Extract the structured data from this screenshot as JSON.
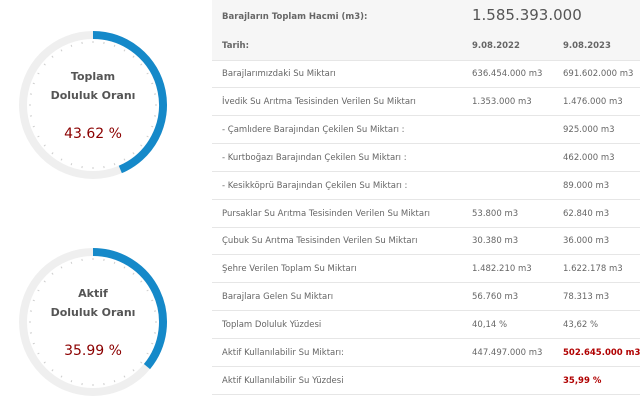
{
  "gauges": [
    {
      "title": [
        "Toplam",
        "Doluluk Oranı"
      ],
      "value": 43.62,
      "value_label": "43.62 %",
      "color": "#1589c9"
    },
    {
      "title": [
        "Aktif",
        "Doluluk Oranı"
      ],
      "value": 35.99,
      "value_label": "35.99 %",
      "color": "#1589c9"
    }
  ],
  "table": {
    "header": {
      "label": "Barajların Toplam Hacmi (m3):",
      "value": "1.585.393.000"
    },
    "columns": [
      "Tarih:",
      "9.08.2022",
      "9.08.2023"
    ],
    "highlight_color": "#b00000",
    "rows": [
      {
        "cells": [
          "Barajlarımızdaki Su Miktarı",
          "636.454.000 m3",
          "691.602.000 m3"
        ]
      },
      {
        "cells": [
          "İvedik Su Arıtma Tesisinden Verilen Su Miktarı",
          "1.353.000 m3",
          "1.476.000 m3"
        ]
      },
      {
        "cells": [
          "- Çamlıdere Barajından Çekilen Su Miktarı :",
          null,
          "925.000 m3"
        ]
      },
      {
        "cells": [
          "- Kurtboğazı Barajından Çekilen Su Miktarı :",
          null,
          "462.000 m3"
        ]
      },
      {
        "cells": [
          "- Kesikköprü Barajından Çekilen Su Miktarı :",
          null,
          "89.000 m3"
        ]
      },
      {
        "cells": [
          "Pursaklar Su Arıtma Tesisinden Verilen Su Miktarı",
          "53.800 m3",
          "62.840 m3"
        ]
      },
      {
        "cells": [
          "Çubuk Su Arıtma Tesisinden Verilen Su Miktarı",
          "30.380 m3",
          "36.000 m3"
        ]
      },
      {
        "cells": [
          "Şehre Verilen Toplam Su Miktarı",
          "1.482.210 m3",
          "1.622.178 m3"
        ]
      },
      {
        "cells": [
          "Barajlara Gelen Su Miktarı",
          "56.760 m3",
          "78.313 m3"
        ]
      },
      {
        "cells": [
          "Toplam Doluluk Yüzdesi",
          "40,14 %",
          "43,62 %"
        ]
      },
      {
        "cells": [
          "Aktif Kullanılabilir Su Miktarı:",
          "447.497.000 m3",
          "502.645.000 m3"
        ],
        "highlight": 2
      },
      {
        "cells": [
          "Aktif Kullanılabilir Su Yüzdesi",
          null,
          "35,99 %"
        ],
        "highlight": 2
      }
    ]
  }
}
